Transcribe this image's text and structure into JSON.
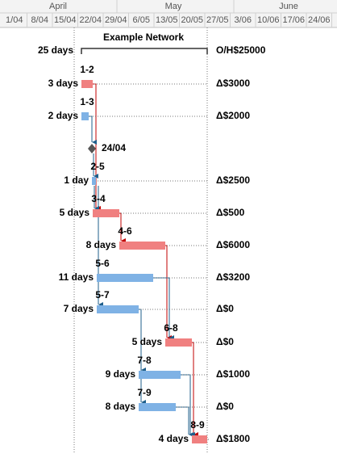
{
  "timescale": {
    "months": [
      "April",
      "May",
      "June"
    ],
    "weeks": [
      "1/04",
      "8/04",
      "15/04",
      "22/04",
      "29/04",
      "6/05",
      "13/05",
      "20/05",
      "27/05",
      "3/06",
      "10/06",
      "17/06",
      "24/06"
    ]
  },
  "title": "Example Network",
  "summary": {
    "duration": "25 days",
    "cost": "O/H$25000"
  },
  "milestone": {
    "label": "24/04"
  },
  "tasks": [
    {
      "id": "1-2",
      "duration": "3 days",
      "cost": "Δ$3000"
    },
    {
      "id": "1-3",
      "duration": "2 days",
      "cost": "Δ$2000"
    },
    {
      "id": "2-5",
      "duration": "1 day",
      "cost": "Δ$2500"
    },
    {
      "id": "3-4",
      "duration": "5 days",
      "cost": "Δ$500"
    },
    {
      "id": "4-6",
      "duration": "8 days",
      "cost": "Δ$6000"
    },
    {
      "id": "5-6",
      "duration": "11 days",
      "cost": "Δ$3200"
    },
    {
      "id": "5-7",
      "duration": "7 days",
      "cost": "Δ$0"
    },
    {
      "id": "6-8",
      "duration": "5 days",
      "cost": "Δ$0"
    },
    {
      "id": "7-8",
      "duration": "9 days",
      "cost": "Δ$1000"
    },
    {
      "id": "7-9",
      "duration": "8 days",
      "cost": "Δ$0"
    },
    {
      "id": "8-9",
      "duration": "4 days",
      "cost": "Δ$1800"
    }
  ]
}
